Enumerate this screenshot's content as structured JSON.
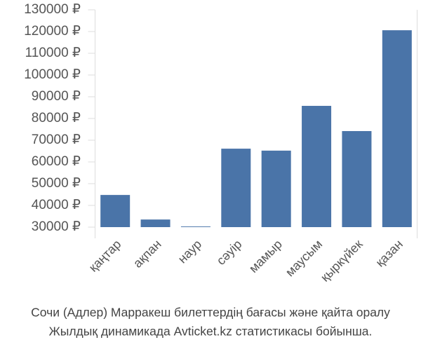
{
  "chart_data": {
    "type": "bar",
    "categories": [
      "қаңтар",
      "ақпан",
      "наур",
      "сәуір",
      "мамыр",
      "маусым",
      "қыркүйек",
      "қазан"
    ],
    "values": [
      44800,
      33500,
      30300,
      66100,
      65200,
      85800,
      74200,
      120600
    ],
    "color": "#4a74a8",
    "ylim": [
      30000,
      130000
    ],
    "yticks": [
      {
        "value": 30000,
        "label": "30000 ₽"
      },
      {
        "value": 40000,
        "label": "40000 ₽"
      },
      {
        "value": 50000,
        "label": "50000 ₽"
      },
      {
        "value": 60000,
        "label": "60000 ₽"
      },
      {
        "value": 70000,
        "label": "70000 ₽"
      },
      {
        "value": 80000,
        "label": "80000 ₽"
      },
      {
        "value": 90000,
        "label": "90000 ₽"
      },
      {
        "value": 100000,
        "label": "100000 ₽"
      },
      {
        "value": 110000,
        "label": "110000 ₽"
      },
      {
        "value": 120000,
        "label": "120000 ₽"
      },
      {
        "value": 130000,
        "label": "130000 ₽"
      }
    ],
    "caption": [
      "Сочи (Адлер) Марракеш билеттердің бағасы және қайта оралу",
      "Жылдық динамикада Avticket.kz статистикасы бойынша."
    ]
  }
}
